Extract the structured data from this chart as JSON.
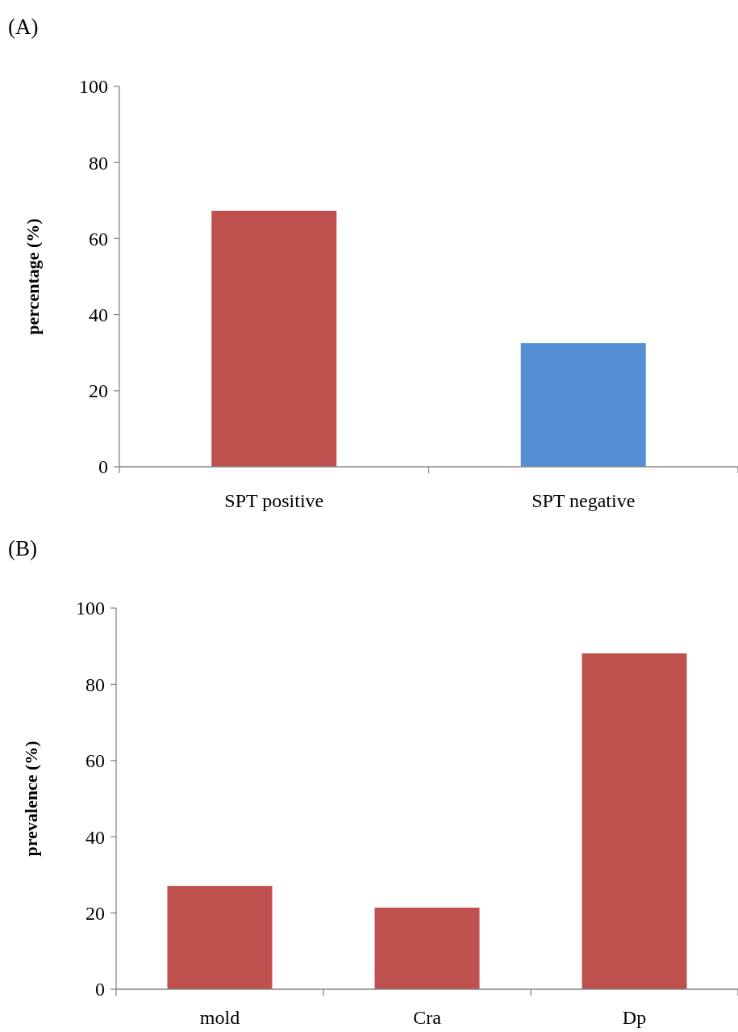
{
  "chart_data": [
    {
      "type": "bar",
      "annotations": [
        "(A)"
      ],
      "ylabel": "percentage  (%)",
      "categories": [
        "SPT positive",
        "SPT negative"
      ],
      "values": [
        67.3,
        32.5
      ],
      "colors": [
        "#c0504d",
        "#558ed5"
      ],
      "ylim": [
        0,
        100
      ],
      "yticks": [
        0,
        20,
        40,
        60,
        80,
        100
      ]
    },
    {
      "type": "bar",
      "annotations": [
        "(B)"
      ],
      "ylabel": "prevalence (%)",
      "categories": [
        "mold",
        "Cra",
        "Dp"
      ],
      "values": [
        27.1,
        21.4,
        88.1
      ],
      "colors": [
        "#c0504d",
        "#c0504d",
        "#c0504d"
      ],
      "ylim": [
        0,
        100
      ],
      "yticks": [
        0,
        20,
        40,
        60,
        80,
        100
      ]
    }
  ]
}
